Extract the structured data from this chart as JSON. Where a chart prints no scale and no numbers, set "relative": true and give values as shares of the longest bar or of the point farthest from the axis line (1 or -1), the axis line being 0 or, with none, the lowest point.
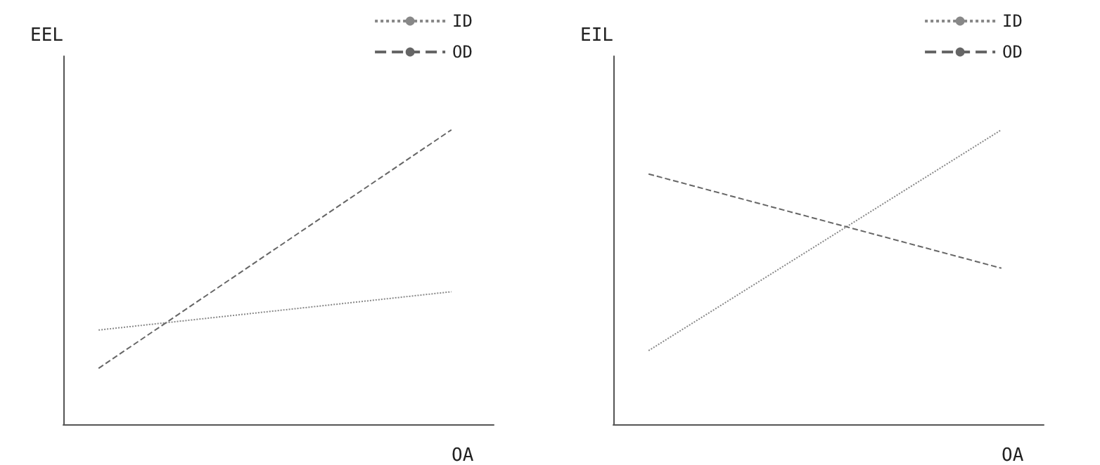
{
  "chart_data": [
    {
      "type": "line",
      "ylabel": "EEL",
      "xlabel": "OA",
      "relative": true,
      "categories": [
        null,
        null
      ],
      "legend": "top right",
      "marker": "none",
      "series": [
        {
          "name": "ID",
          "color": "#888888",
          "line_style": "dotted",
          "values": [
            0.32,
            0.45
          ]
        },
        {
          "name": "OD",
          "color": "#666666",
          "line_style": "dashed",
          "values": [
            0.19,
            1
          ]
        }
      ]
    },
    {
      "type": "line",
      "ylabel": "EIL",
      "xlabel": "OA",
      "relative": true,
      "categories": [
        null,
        null
      ],
      "legend": "top right",
      "marker": "none",
      "series": [
        {
          "name": "ID",
          "color": "#888888",
          "line_style": "dotted",
          "values": [
            0.25,
            1
          ]
        },
        {
          "name": "OD",
          "color": "#666666",
          "line_style": "dashed",
          "values": [
            0.85,
            0.53
          ]
        }
      ]
    }
  ]
}
